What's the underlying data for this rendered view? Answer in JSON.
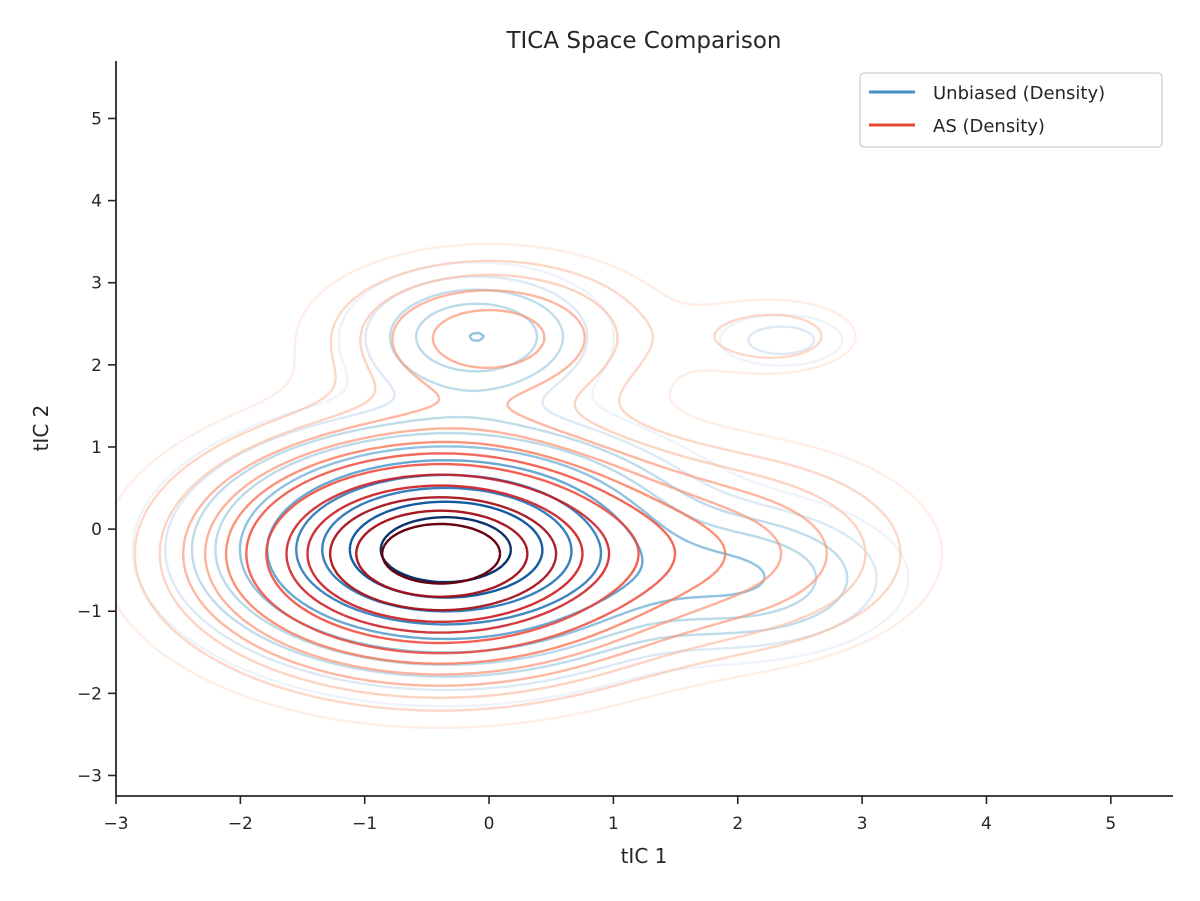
{
  "chart_data": {
    "type": "contour",
    "title": "TICA Space Comparison",
    "xlabel": "tIC 1",
    "ylabel": "tIC 2",
    "xlim": [
      -3,
      5.5
    ],
    "ylim": [
      -3.25,
      5.7
    ],
    "xticks": [
      -3,
      -2,
      -1,
      0,
      1,
      2,
      3,
      4,
      5
    ],
    "yticks": [
      -3,
      -2,
      -1,
      0,
      1,
      2,
      3,
      4,
      5
    ],
    "xtick_labels": [
      "−3",
      "−2",
      "−1",
      "0",
      "1",
      "2",
      "3",
      "4",
      "5"
    ],
    "ytick_labels": [
      "−3",
      "−2",
      "−1",
      "0",
      "1",
      "2",
      "3",
      "4",
      "5"
    ],
    "grid": false,
    "legend_position": "upper right",
    "series": [
      {
        "name": "Unbiased (Density)",
        "legend_color": "#4292c6",
        "colormap": [
          "#deebf7",
          "#c6dbef",
          "#9ecae1",
          "#6baed6",
          "#4292c6",
          "#2171b5",
          "#08519c",
          "#08306b"
        ],
        "components": [
          {
            "mx": -0.35,
            "my": -0.25,
            "sx": 0.95,
            "sy": 0.72,
            "w": 1.0
          },
          {
            "mx": -0.1,
            "my": 2.35,
            "sx": 0.55,
            "sy": 0.45,
            "w": 0.22
          },
          {
            "mx": 2.1,
            "my": -0.6,
            "sx": 0.65,
            "sy": 0.5,
            "w": 0.2
          },
          {
            "mx": 2.35,
            "my": 2.3,
            "sx": 0.35,
            "sy": 0.22,
            "w": 0.08
          }
        ],
        "levels": [
          0.03,
          0.06,
          0.1,
          0.15,
          0.22,
          0.32,
          0.45,
          0.58,
          0.72,
          0.86
        ]
      },
      {
        "name": "AS (Density)",
        "legend_color": "#e34a33",
        "colormap": [
          "#fee0d2",
          "#fcbba1",
          "#fc9272",
          "#fb6a4a",
          "#ef3b2c",
          "#cb181d",
          "#a50f15",
          "#67000d"
        ],
        "components": [
          {
            "mx": -0.4,
            "my": -0.3,
            "sx": 1.0,
            "sy": 0.78,
            "w": 1.0
          },
          {
            "mx": 0.0,
            "my": 2.35,
            "sx": 0.75,
            "sy": 0.55,
            "w": 0.2
          },
          {
            "mx": 2.0,
            "my": -0.3,
            "sx": 0.85,
            "sy": 0.7,
            "w": 0.16
          },
          {
            "mx": 2.3,
            "my": 2.35,
            "sx": 0.45,
            "sy": 0.3,
            "w": 0.07
          }
        ],
        "levels": [
          0.025,
          0.05,
          0.08,
          0.12,
          0.17,
          0.23,
          0.3,
          0.38,
          0.47,
          0.57,
          0.68,
          0.8,
          0.9
        ]
      }
    ]
  }
}
